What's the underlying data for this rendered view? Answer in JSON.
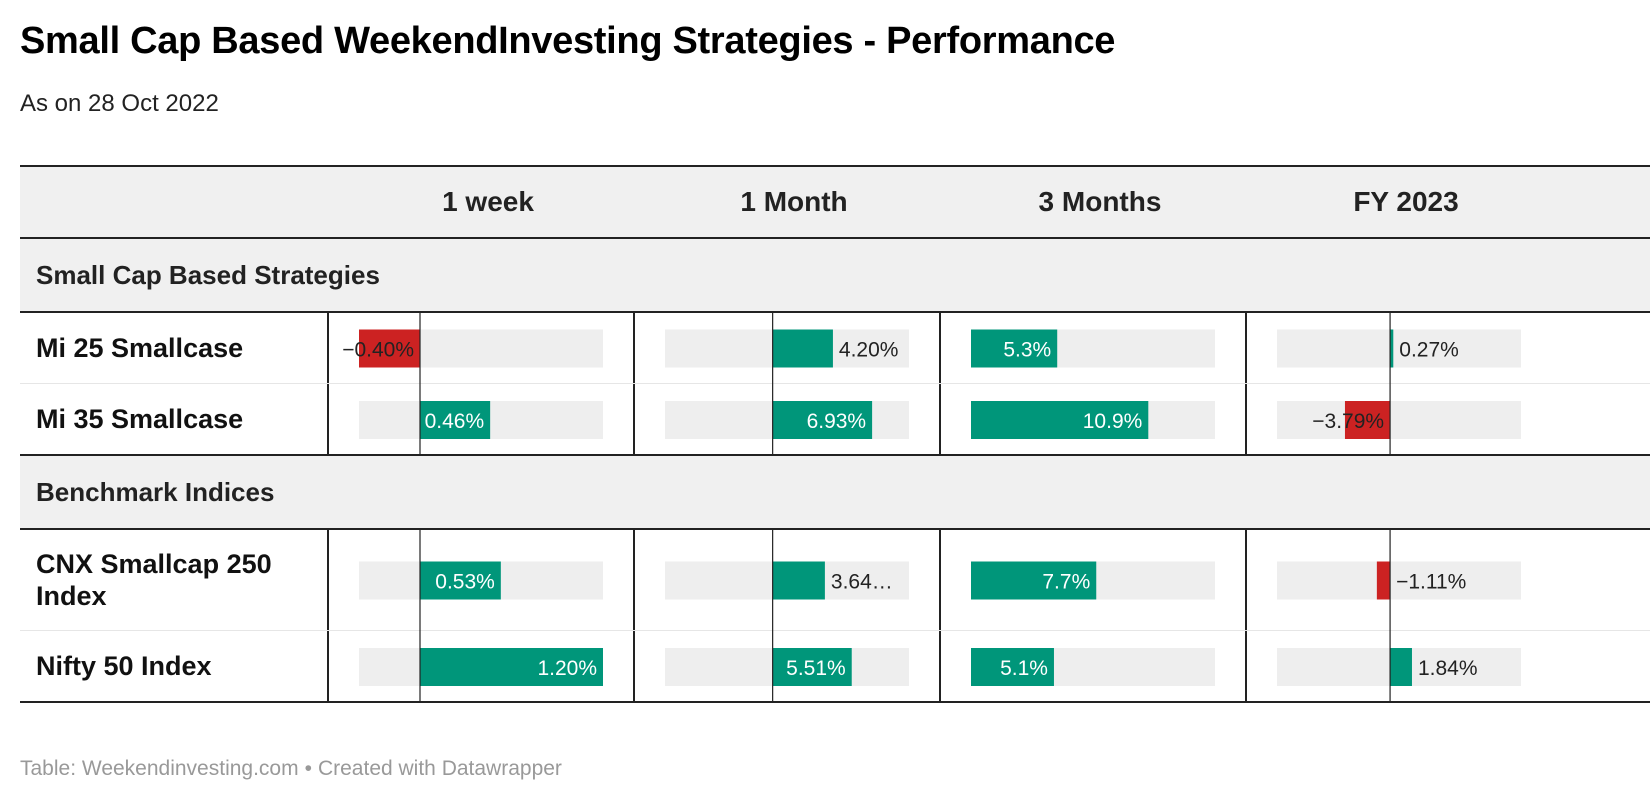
{
  "title": "Small Cap Based WeekendInvesting Strategies - Performance",
  "subtitle": "As on 28 Oct 2022",
  "columns": [
    "1 week",
    "1 Month",
    "3 Months",
    "FY 2023"
  ],
  "groups": [
    {
      "label": "Small Cap Based Strategies",
      "rows": [
        {
          "label": "Mi 25 Smallcase",
          "values": [
            -0.4,
            4.2,
            5.3,
            0.27
          ],
          "display": [
            "−0.40%",
            "4.20%",
            "5.3%",
            "0.27%"
          ]
        },
        {
          "label": "Mi 35 Smallcase",
          "values": [
            0.46,
            6.93,
            10.9,
            -3.79
          ],
          "display": [
            "0.46%",
            "6.93%",
            "10.9%",
            "−3.79%"
          ]
        }
      ]
    },
    {
      "label": "Benchmark Indices",
      "rows": [
        {
          "label": "CNX Smallcap 250 Index",
          "values": [
            0.53,
            3.64,
            7.7,
            -1.11
          ],
          "display": [
            "0.53%",
            "3.64…",
            "7.7%",
            "−1.11%"
          ]
        },
        {
          "label": "Nifty 50 Index",
          "values": [
            1.2,
            5.51,
            5.1,
            1.84
          ],
          "display": [
            "1.20%",
            "5.51%",
            "5.1%",
            "1.84%"
          ]
        }
      ]
    }
  ],
  "colors": {
    "positive": "#00967a",
    "negative": "#cc2222",
    "track": "#eeeeee",
    "rule": "#222222"
  },
  "chart_data": {
    "type": "bar",
    "categories": [
      "Mi 25 Smallcase",
      "Mi 35 Smallcase",
      "CNX Smallcap 250 Index",
      "Nifty 50 Index"
    ],
    "series": [
      {
        "name": "1 week",
        "values": [
          -0.4,
          0.46,
          0.53,
          1.2
        ],
        "xlim": [
          -0.4,
          1.2
        ]
      },
      {
        "name": "1 Month",
        "values": [
          4.2,
          6.93,
          3.64,
          5.51
        ],
        "xlim": [
          -7.5,
          9.5
        ]
      },
      {
        "name": "3 Months",
        "values": [
          5.3,
          10.9,
          7.7,
          5.1
        ],
        "xlim": [
          0,
          15
        ]
      },
      {
        "name": "FY 2023",
        "values": [
          0.27,
          -3.79,
          -1.11,
          1.84
        ],
        "xlim": [
          -9.5,
          11
        ]
      }
    ]
  },
  "footer": {
    "source": "Table: Weekendinvesting.com",
    "credit": "Created with Datawrapper"
  }
}
